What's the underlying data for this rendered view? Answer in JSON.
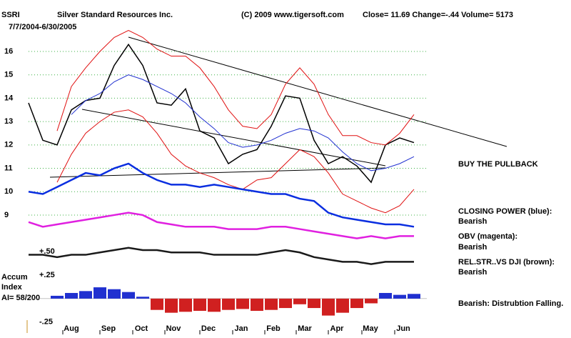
{
  "header": {
    "symbol": "SSRI",
    "company": "Silver Standard Resources Inc.",
    "copyright": "(C) 2009 www.tigersoft.com",
    "quote": "Close=  11.69  Change=-.44 Volume= 5173",
    "date_range": "7/7/2004-6/30/2005"
  },
  "annotations": [
    "BUY THE PULLBACK",
    "CLOSING POWER (blue):",
    "Bearish",
    "OBV (magenta):",
    "Bearish",
    "REL.STR..VS DJI (brown):",
    "Bearish",
    "Bearish:  Distrubtion Falling."
  ],
  "chart_data": [
    {
      "type": "line",
      "xlim": [
        0,
        27
      ],
      "ylim": [
        6.8,
        17
      ],
      "yticks": [
        9,
        10,
        11,
        12,
        13,
        14,
        15,
        16
      ],
      "grid": true,
      "grid_color": "#3cb043",
      "xticks": [
        {
          "value": 3,
          "label": "Aug"
        },
        {
          "value": 5.6,
          "label": "Sep"
        },
        {
          "value": 7.9,
          "label": "Oct"
        },
        {
          "value": 10.15,
          "label": "Nov"
        },
        {
          "value": 12.6,
          "label": "Dec"
        },
        {
          "value": 14.9,
          "label": "Jan"
        },
        {
          "value": 17.15,
          "label": "Feb"
        },
        {
          "value": 19.35,
          "label": "Mar"
        },
        {
          "value": 21.6,
          "label": "Apr"
        },
        {
          "value": 23.95,
          "label": "May"
        },
        {
          "value": 26.25,
          "label": "Jun"
        }
      ],
      "series": [
        {
          "color": "#000000",
          "width": 1.5,
          "values": [
            13.8,
            12.2,
            12.0,
            13.5,
            13.9,
            14.0,
            15.4,
            16.3,
            15.4,
            13.8,
            13.7,
            14.4,
            12.6,
            12.3,
            11.2,
            11.6,
            11.8,
            12.8,
            14.1,
            14.0,
            12.2,
            11.2,
            11.5,
            11.1,
            10.4,
            12.0,
            12.3,
            12.1
          ]
        },
        {
          "color": "#e01010",
          "width": 1,
          "values": [
            null,
            null,
            12.6,
            14.5,
            15.3,
            16.0,
            16.6,
            16.9,
            16.6,
            16.1,
            15.8,
            15.8,
            15.3,
            14.5,
            13.5,
            12.8,
            12.7,
            13.3,
            14.6,
            15.3,
            14.6,
            13.3,
            12.4,
            12.4,
            12.1,
            12.0,
            12.5,
            13.3
          ]
        },
        {
          "color": "#e01010",
          "width": 1,
          "values": [
            null,
            null,
            10.4,
            11.6,
            12.5,
            13.0,
            13.4,
            13.5,
            13.2,
            12.5,
            11.6,
            11.1,
            10.8,
            10.6,
            10.3,
            10.1,
            10.5,
            10.6,
            11.2,
            11.8,
            11.5,
            10.8,
            9.9,
            9.6,
            9.3,
            9.1,
            9.4,
            10.1
          ]
        },
        {
          "color": "#2030d0",
          "width": 1,
          "values": [
            null,
            null,
            null,
            13.3,
            13.9,
            14.2,
            14.7,
            15.0,
            14.8,
            14.5,
            14.2,
            13.8,
            13.2,
            12.7,
            12.1,
            11.9,
            12.0,
            12.2,
            12.5,
            12.7,
            12.6,
            12.3,
            11.7,
            11.2,
            10.9,
            11.0,
            11.2,
            11.5
          ]
        },
        {
          "color": "#0a2ee0",
          "width": 2.5,
          "values": [
            10.0,
            9.9,
            10.2,
            10.5,
            10.8,
            10.7,
            11.0,
            11.2,
            10.8,
            10.5,
            10.3,
            10.3,
            10.2,
            10.3,
            10.2,
            10.1,
            10.0,
            9.9,
            9.9,
            9.7,
            9.6,
            9.1,
            8.9,
            8.8,
            8.7,
            8.6,
            8.6,
            8.5
          ]
        },
        {
          "color": "#e020e0",
          "width": 2.5,
          "values": [
            8.7,
            8.5,
            8.6,
            8.7,
            8.8,
            8.9,
            9.0,
            9.1,
            9.0,
            8.7,
            8.6,
            8.5,
            8.5,
            8.5,
            8.4,
            8.4,
            8.4,
            8.5,
            8.5,
            8.4,
            8.3,
            8.2,
            8.1,
            8.0,
            8.1,
            8.0,
            8.1,
            8.1
          ]
        },
        {
          "color": "#1a1a1a",
          "width": 2.5,
          "values": [
            7.3,
            7.3,
            7.2,
            7.3,
            7.3,
            7.4,
            7.5,
            7.6,
            7.5,
            7.5,
            7.4,
            7.4,
            7.4,
            7.3,
            7.3,
            7.3,
            7.3,
            7.4,
            7.5,
            7.4,
            7.2,
            7.1,
            7.0,
            7.0,
            6.9,
            7.0,
            7.0,
            7.0
          ]
        }
      ]
    },
    {
      "type": "bar",
      "title_lines": [
        "Accum",
        "Index"
      ],
      "label": "AI= 58/200",
      "xlim": [
        0,
        27
      ],
      "ylim": [
        -0.35,
        0.5
      ],
      "yticks": [
        {
          "value": 0.5,
          "label": "+.50"
        },
        {
          "value": 0.25,
          "label": "+.25"
        },
        {
          "value": -0.25,
          "label": "-.25"
        }
      ],
      "pos_color": "#2030d0",
      "neg_color": "#d02020",
      "values": [
        null,
        null,
        0.03,
        0.06,
        0.08,
        0.12,
        0.1,
        0.07,
        0.02,
        -0.12,
        -0.15,
        -0.14,
        -0.13,
        -0.14,
        -0.12,
        -0.11,
        -0.13,
        -0.12,
        -0.1,
        -0.06,
        -0.1,
        -0.18,
        -0.15,
        -0.1,
        -0.05,
        0.06,
        0.04,
        0.05
      ]
    }
  ]
}
